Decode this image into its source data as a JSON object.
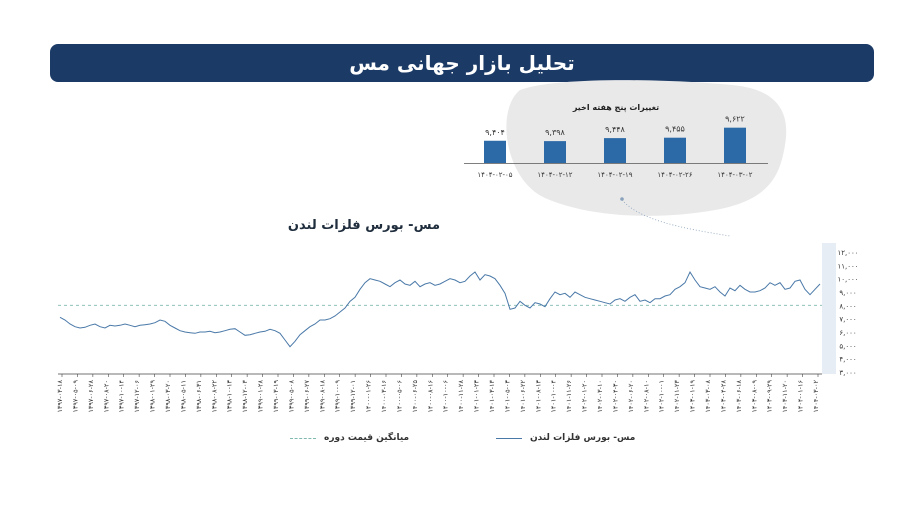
{
  "header": {
    "title": "تحلیل بازار جهانی مس"
  },
  "weekly": {
    "title": "تغییرات پنج هفته اخیر",
    "bar_color": "#2b6aa6",
    "bars": [
      {
        "label": "۹,۴۰۴",
        "date": "۱۴۰۴-۰۲-۰۵",
        "value": 9404
      },
      {
        "label": "۹,۳۹۸",
        "date": "۱۴۰۴-۰۲-۱۲",
        "value": 9398
      },
      {
        "label": "۹,۴۴۸",
        "date": "۱۴۰۴-۰۲-۱۹",
        "value": 9448
      },
      {
        "label": "۹,۴۵۵",
        "date": "۱۴۰۴-۰۲-۲۶",
        "value": 9455
      },
      {
        "label": "۹,۶۲۲",
        "date": "۱۴۰۴-۰۳-۰۲",
        "value": 9622
      }
    ]
  },
  "chart_data": {
    "type": "line",
    "title": "مس- بورس فلزات لندن",
    "ylim": [
      3000,
      12000
    ],
    "y_ticks": [
      "۱۲,۰۰۰",
      "۱۱,۰۰۰",
      "۱۰,۰۰۰",
      "۹,۰۰۰",
      "۸,۰۰۰",
      "۷,۰۰۰",
      "۶,۰۰۰",
      "۵,۰۰۰",
      "۴,۰۰۰",
      "۳,۰۰۰"
    ],
    "y_tick_values": [
      12000,
      11000,
      10000,
      9000,
      8000,
      7000,
      6000,
      5000,
      4000,
      3000
    ],
    "x_tick_labels": [
      "۱۳۹۷-۰۳-۱۸",
      "۱۳۹۷-۰۵-۰۹",
      "۱۳۹۷-۰۶-۲۸",
      "۱۳۹۷-۰۸-۲۰",
      "۱۳۹۷-۱۰-۱۴",
      "۱۳۹۷-۱۲-۰۶",
      "۱۳۹۸-۰۱-۲۹",
      "۱۳۹۸-۰۳-۲۰",
      "۱۳۹۸-۰۵-۱۱",
      "۱۳۹۸-۰۶-۳۱",
      "۱۳۹۸-۰۸-۲۲",
      "۱۳۹۸-۱۰-۱۳",
      "۱۳۹۸-۱۲-۰۳",
      "۱۳۹۹-۰۱-۲۸",
      "۱۳۹۹-۰۳-۱۹",
      "۱۳۹۹-۰۵-۰۸",
      "۱۳۹۹-۰۶-۲۷",
      "۱۳۹۹-۰۸-۱۸",
      "۱۳۹۹-۱۰-۰۹",
      "۱۳۹۹-۱۲-۰۱",
      "۱۴۰۰-۰۱-۲۶",
      "۱۴۰۰-۰۳-۱۶",
      "۱۴۰۰-۰۵-۰۶",
      "۱۴۰۰-۰۶-۲۵",
      "۱۴۰۰-۰۸-۱۶",
      "۱۴۰۰-۱۰-۰۶",
      "۱۴۰۰-۱۱-۲۸",
      "۱۴۰۱-۰۱-۲۳",
      "۱۴۰۱-۰۳-۱۳",
      "۱۴۰۱-۰۵-۰۳",
      "۱۴۰۱-۰۶-۲۲",
      "۱۴۰۱-۰۸-۱۳",
      "۱۴۰۱-۱۰-۰۴",
      "۱۴۰۱-۱۱-۲۶",
      "۱۴۰۲-۰۱-۲۰",
      "۱۴۰۲-۰۳-۱۰",
      "۱۴۰۲-۰۴-۳۰",
      "۱۴۰۲-۰۶-۲۰",
      "۱۴۰۲-۰۸-۱۰",
      "۱۴۰۲-۱۰-۰۱",
      "۱۴۰۲-۱۱-۲۳",
      "۱۴۰۳-۰۱-۱۹",
      "۱۴۰۳-۰۳-۰۸",
      "۱۴۰۳-۰۴-۲۸",
      "۱۴۰۳-۰۶-۱۸",
      "۱۴۰۳-۰۸-۰۹",
      "۱۴۰۳-۰۹-۲۹",
      "۱۴۰۳-۱۱-۲۰",
      "۱۴۰۴-۰۱-۱۶",
      "۱۴۰۴-۰۳-۰۲"
    ],
    "average_value": 8000,
    "series": [
      {
        "name": "مس- بورس فلزات لندن",
        "color": "#4a79a8",
        "values": [
          7100,
          6900,
          6600,
          6400,
          6300,
          6350,
          6500,
          6600,
          6400,
          6300,
          6500,
          6450,
          6500,
          6600,
          6500,
          6400,
          6500,
          6550,
          6600,
          6700,
          6900,
          6800,
          6500,
          6300,
          6100,
          6000,
          5950,
          5900,
          6000,
          6000,
          6050,
          5950,
          6000,
          6100,
          6200,
          6250,
          6000,
          5750,
          5800,
          5900,
          6000,
          6050,
          6200,
          6100,
          5900,
          5400,
          4900,
          5300,
          5800,
          6100,
          6400,
          6600,
          6900,
          6900,
          7000,
          7200,
          7500,
          7800,
          8300,
          8600,
          9200,
          9700,
          10000,
          9900,
          9800,
          9600,
          9400,
          9700,
          9900,
          9600,
          9500,
          9800,
          9400,
          9600,
          9700,
          9500,
          9600,
          9800,
          10000,
          9900,
          9700,
          9800,
          10200,
          10500,
          9900,
          10300,
          10200,
          10000,
          9500,
          8900,
          7700,
          7800,
          8300,
          8000,
          7800,
          8200,
          8100,
          7900,
          8500,
          9000,
          8800,
          8900,
          8600,
          9000,
          8800,
          8600,
          8500,
          8400,
          8300,
          8200,
          8100,
          8400,
          8500,
          8300,
          8600,
          8800,
          8300,
          8400,
          8200,
          8500,
          8500,
          8700,
          8800,
          9200,
          9400,
          9700,
          10500,
          9900,
          9400,
          9300,
          9200,
          9400,
          9000,
          8700,
          9300,
          9100,
          9500,
          9200,
          9000,
          9000,
          9100,
          9300,
          9700,
          9500,
          9700,
          9200,
          9300,
          9800,
          9900,
          9200,
          8800,
          9200,
          9600
        ]
      }
    ],
    "legend": [
      {
        "label": "مس- بورس فلزات لندن",
        "style": "solid"
      },
      {
        "label": "میانگین قیمت دوره",
        "style": "dashed"
      }
    ],
    "legend_position": "bottom",
    "grid": false
  }
}
